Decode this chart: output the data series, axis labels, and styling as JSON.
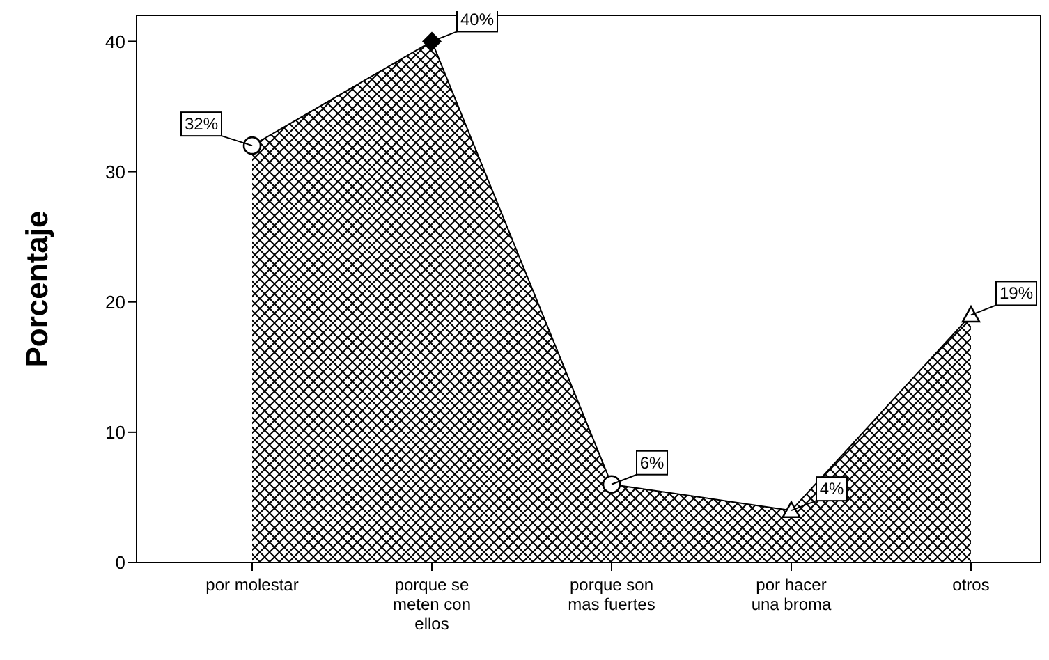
{
  "chart_data": {
    "type": "area",
    "ylabel": "Porcentaje",
    "categories": [
      "por molestar",
      "porque se meten con ellos",
      "porque son mas fuertes",
      "por hacer una broma",
      "otros"
    ],
    "values": [
      32,
      40,
      6,
      4,
      19
    ],
    "value_labels": [
      "32%",
      "40%",
      "6%",
      "4%",
      "19%"
    ],
    "color": "#000000",
    "marker": [
      "circle",
      "diamond",
      "circle",
      "triangle",
      "triangle"
    ],
    "ylim": [
      0,
      42
    ],
    "yticks": [
      0,
      10,
      20,
      30,
      40
    ]
  }
}
